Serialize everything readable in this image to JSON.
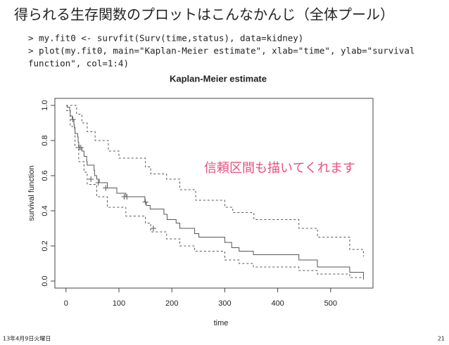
{
  "slide_title": "得られる生存関数のプロットはこんなかんじ（全体プール）",
  "code": [
    "> my.fit0 <- survfit(Surv(time,status), data=kidney)",
    "> plot(my.fit0, main=\"Kaplan-Meier estimate\", xlab=\"time\", ylab=\"survival",
    "function\", col=1:4)"
  ],
  "annotation": "信頼区間も描いてくれます",
  "footer": {
    "date": "13年4月9日火曜日",
    "page": "21"
  },
  "chart_data": {
    "type": "step",
    "title": "Kaplan-Meier estimate",
    "xlabel": "time",
    "ylabel": "survival function",
    "xlim": [
      -21,
      580
    ],
    "ylim": [
      -0.04,
      1.04
    ],
    "xticks": [
      0,
      100,
      200,
      300,
      400,
      500
    ],
    "yticks": [
      {
        "value": 0,
        "label": "0.0"
      },
      0.2,
      0.4,
      0.6,
      0.8,
      {
        "value": 1,
        "label": "1.0"
      }
    ],
    "series": [
      {
        "color": "#555555",
        "dashed": false,
        "x": [
          0,
          2,
          7,
          8,
          12,
          15,
          16,
          17,
          22,
          23,
          24,
          30,
          34,
          39,
          40,
          53,
          54,
          58,
          63,
          78,
          96,
          113,
          149,
          152,
          159,
          185,
          191,
          208,
          215,
          243,
          251,
          300,
          313,
          327,
          354,
          440,
          475,
          536,
          562
        ],
        "values": [
          1.0,
          0.99,
          0.97,
          0.94,
          0.92,
          0.89,
          0.87,
          0.84,
          0.82,
          0.79,
          0.76,
          0.74,
          0.71,
          0.68,
          0.66,
          0.63,
          0.6,
          0.58,
          0.56,
          0.53,
          0.5,
          0.48,
          0.45,
          0.43,
          0.41,
          0.38,
          0.35,
          0.33,
          0.3,
          0.27,
          0.25,
          0.22,
          0.19,
          0.17,
          0.15,
          0.12,
          0.08,
          0.05,
          0.02
        ]
      },
      {
        "color": "#555555",
        "dashed": true,
        "x": [
          0,
          20,
          30,
          40,
          55,
          80,
          100,
          150,
          160,
          190,
          215,
          245,
          300,
          315,
          355,
          440,
          475,
          536,
          562
        ],
        "values": [
          1.0,
          0.95,
          0.9,
          0.85,
          0.8,
          0.74,
          0.7,
          0.65,
          0.61,
          0.58,
          0.52,
          0.46,
          0.42,
          0.39,
          0.35,
          0.3,
          0.25,
          0.18,
          0.14
        ]
      },
      {
        "color": "#555555",
        "dashed": true,
        "x": [
          0,
          8,
          17,
          24,
          34,
          40,
          58,
          78,
          113,
          150,
          160,
          190,
          215,
          243,
          300,
          327,
          354,
          440,
          475,
          536,
          562
        ],
        "values": [
          0.97,
          0.88,
          0.76,
          0.68,
          0.62,
          0.55,
          0.48,
          0.42,
          0.37,
          0.33,
          0.28,
          0.24,
          0.2,
          0.17,
          0.12,
          0.1,
          0.08,
          0.06,
          0.04,
          0.02,
          0.005
        ]
      }
    ],
    "censored": {
      "x": [
        13,
        25,
        28,
        47,
        61,
        75,
        110,
        115,
        150,
        165
      ],
      "values": [
        0.92,
        0.76,
        0.76,
        0.58,
        0.56,
        0.53,
        0.48,
        0.48,
        0.45,
        0.3
      ]
    }
  }
}
